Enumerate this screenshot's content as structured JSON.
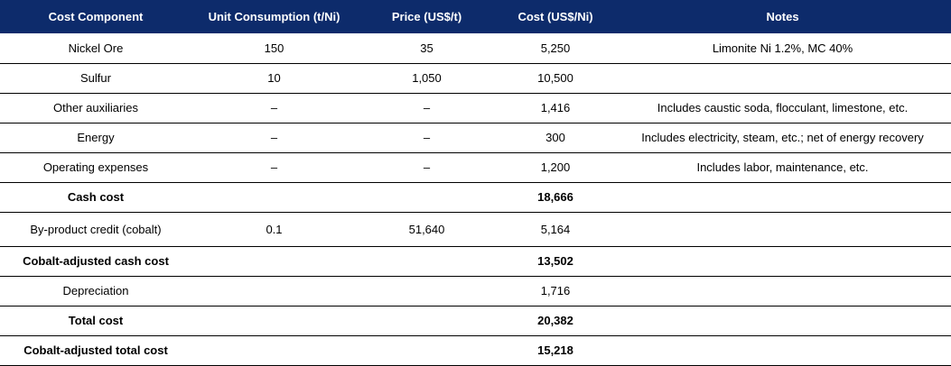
{
  "table": {
    "header": [
      "Cost Component",
      "Unit Consumption (t/Ni)",
      "Price (US$/t)",
      "Cost (US$/Ni)",
      "Notes"
    ],
    "rows": [
      {
        "component": "Nickel Ore",
        "unit": "150",
        "price": "35",
        "cost": "5,250",
        "notes": "Limonite Ni 1.2%, MC 40%"
      },
      {
        "component": "Sulfur",
        "unit": "10",
        "price": "1,050",
        "cost": "10,500"
      },
      {
        "component": "Other auxiliaries",
        "unit": "–",
        "price": "–",
        "cost": "1,416",
        "notes": "Includes caustic soda, flocculant, limestone, etc."
      },
      {
        "component": "Energy",
        "unit": "–",
        "price": "–",
        "cost": "300",
        "notes": "Includes electricity, steam, etc.; net of energy recovery"
      },
      {
        "component": "Operating expenses",
        "unit": "–",
        "price": "–",
        "cost": "1,200",
        "notes": "Includes labor, maintenance, etc."
      },
      {
        "component": "Cash cost",
        "cost": "18,666",
        "bold": true
      },
      {
        "component": "By-product credit (cobalt)",
        "unit": "0.1",
        "price": "51,640",
        "cost": "5,164"
      },
      {
        "component": "Cobalt-adjusted cash cost",
        "cost": "13,502",
        "bold": true
      },
      {
        "component": "Depreciation",
        "cost": "1,716"
      },
      {
        "component": "Total cost",
        "cost": "20,382",
        "bold": true
      },
      {
        "component": "Cobalt-adjusted total cost",
        "cost": "15,218",
        "bold": true
      }
    ]
  }
}
